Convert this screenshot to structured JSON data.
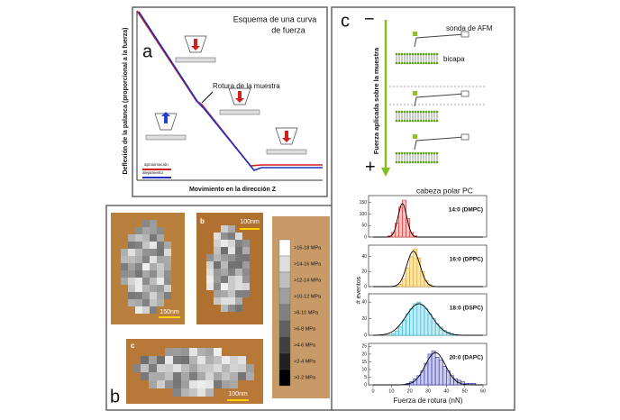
{
  "panel_a": {
    "letter": "a",
    "title": [
      "Esquema de una curva",
      "de fuerza"
    ],
    "y_label": "Deflexión de la palanca (proporcional a la fuerza)",
    "x_label": "Movimiento en la dirección Z",
    "annotation": "Rotura de la muestra",
    "legend": [
      "aproximación",
      "alejamiento"
    ]
  },
  "panel_b": {
    "letter": "b",
    "sub_letters": [
      "b",
      "c"
    ],
    "scale_bars": [
      "150nm",
      "100nm",
      "100nm"
    ],
    "colorbar": [
      ">16-18 MPa",
      ">14-16 MPa",
      ">12-14 MPa",
      ">10-12 MPa",
      ">8-10 MPa",
      ">6-8 MPa",
      ">4-6 MPa",
      ">2-4 MPa",
      ">0-2 MPa"
    ]
  },
  "panel_c": {
    "letter": "c",
    "minus": "−",
    "plus": "+",
    "axis_label": "Fuerza aplicada sobre la muestra",
    "labels": [
      "sonda de AFM",
      "bicapa"
    ]
  },
  "chart_data": {
    "type": "histogram",
    "title": "cabeza polar PC",
    "y_label": "# eventos",
    "x_label": "Fuerza de rotura (nN)",
    "xlim": [
      0,
      60
    ],
    "xticks": [
      0,
      10,
      20,
      30,
      40,
      50,
      60
    ],
    "series": [
      {
        "name": "14:0 (DMPC)",
        "color": "#d03030",
        "fill": "#f4c4c4",
        "bins": [
          8,
          10,
          12,
          14,
          16,
          18,
          20,
          22,
          24
        ],
        "counts": [
          5,
          20,
          60,
          130,
          160,
          80,
          20,
          5
        ],
        "ylim": [
          0,
          180
        ],
        "yticks": [
          0,
          50,
          100,
          150
        ],
        "fit": {
          "center": 16,
          "sigma": 2.4,
          "peak": 145
        }
      },
      {
        "name": "16:0 (DPPC)",
        "color": "#d8a030",
        "fill": "#f8e6a8",
        "bins": [
          14,
          16,
          18,
          20,
          22,
          24,
          26,
          28,
          30,
          32
        ],
        "counts": [
          3,
          10,
          25,
          40,
          50,
          38,
          20,
          8,
          3
        ],
        "ylim": [
          0,
          55
        ],
        "yticks": [
          0,
          20,
          40
        ],
        "fit": {
          "center": 22,
          "sigma": 3.6,
          "peak": 47
        }
      },
      {
        "name": "18:0 (DSPC)",
        "color": "#30b0cc",
        "fill": "#c2eaf2",
        "bins": [
          10,
          12,
          14,
          16,
          18,
          20,
          22,
          24,
          26,
          28,
          30,
          32,
          34,
          36,
          38,
          40,
          42,
          44,
          46
        ],
        "counts": [
          2,
          5,
          10,
          18,
          26,
          32,
          38,
          40,
          36,
          32,
          26,
          20,
          14,
          10,
          6,
          4,
          2,
          1
        ],
        "ylim": [
          0,
          50
        ],
        "yticks": [
          0,
          20,
          40
        ],
        "fit": {
          "center": 25,
          "sigma": 7,
          "peak": 38
        }
      },
      {
        "name": "20:0 (DAPC)",
        "color": "#2828a0",
        "fill": "#cacaf0",
        "bins": [
          18,
          20,
          22,
          24,
          26,
          28,
          30,
          32,
          34,
          36,
          38,
          40,
          42,
          44,
          46,
          48,
          50,
          52,
          54,
          56,
          58
        ],
        "counts": [
          1,
          2,
          4,
          6,
          9,
          14,
          20,
          22,
          18,
          16,
          12,
          9,
          6,
          4,
          3,
          2,
          1,
          1,
          1,
          0
        ],
        "ylim": [
          0,
          27
        ],
        "yticks": [
          0,
          5,
          10,
          15,
          20,
          25
        ],
        "fit": {
          "center": 34,
          "sigma": 5.5,
          "peak": 21
        }
      }
    ]
  }
}
